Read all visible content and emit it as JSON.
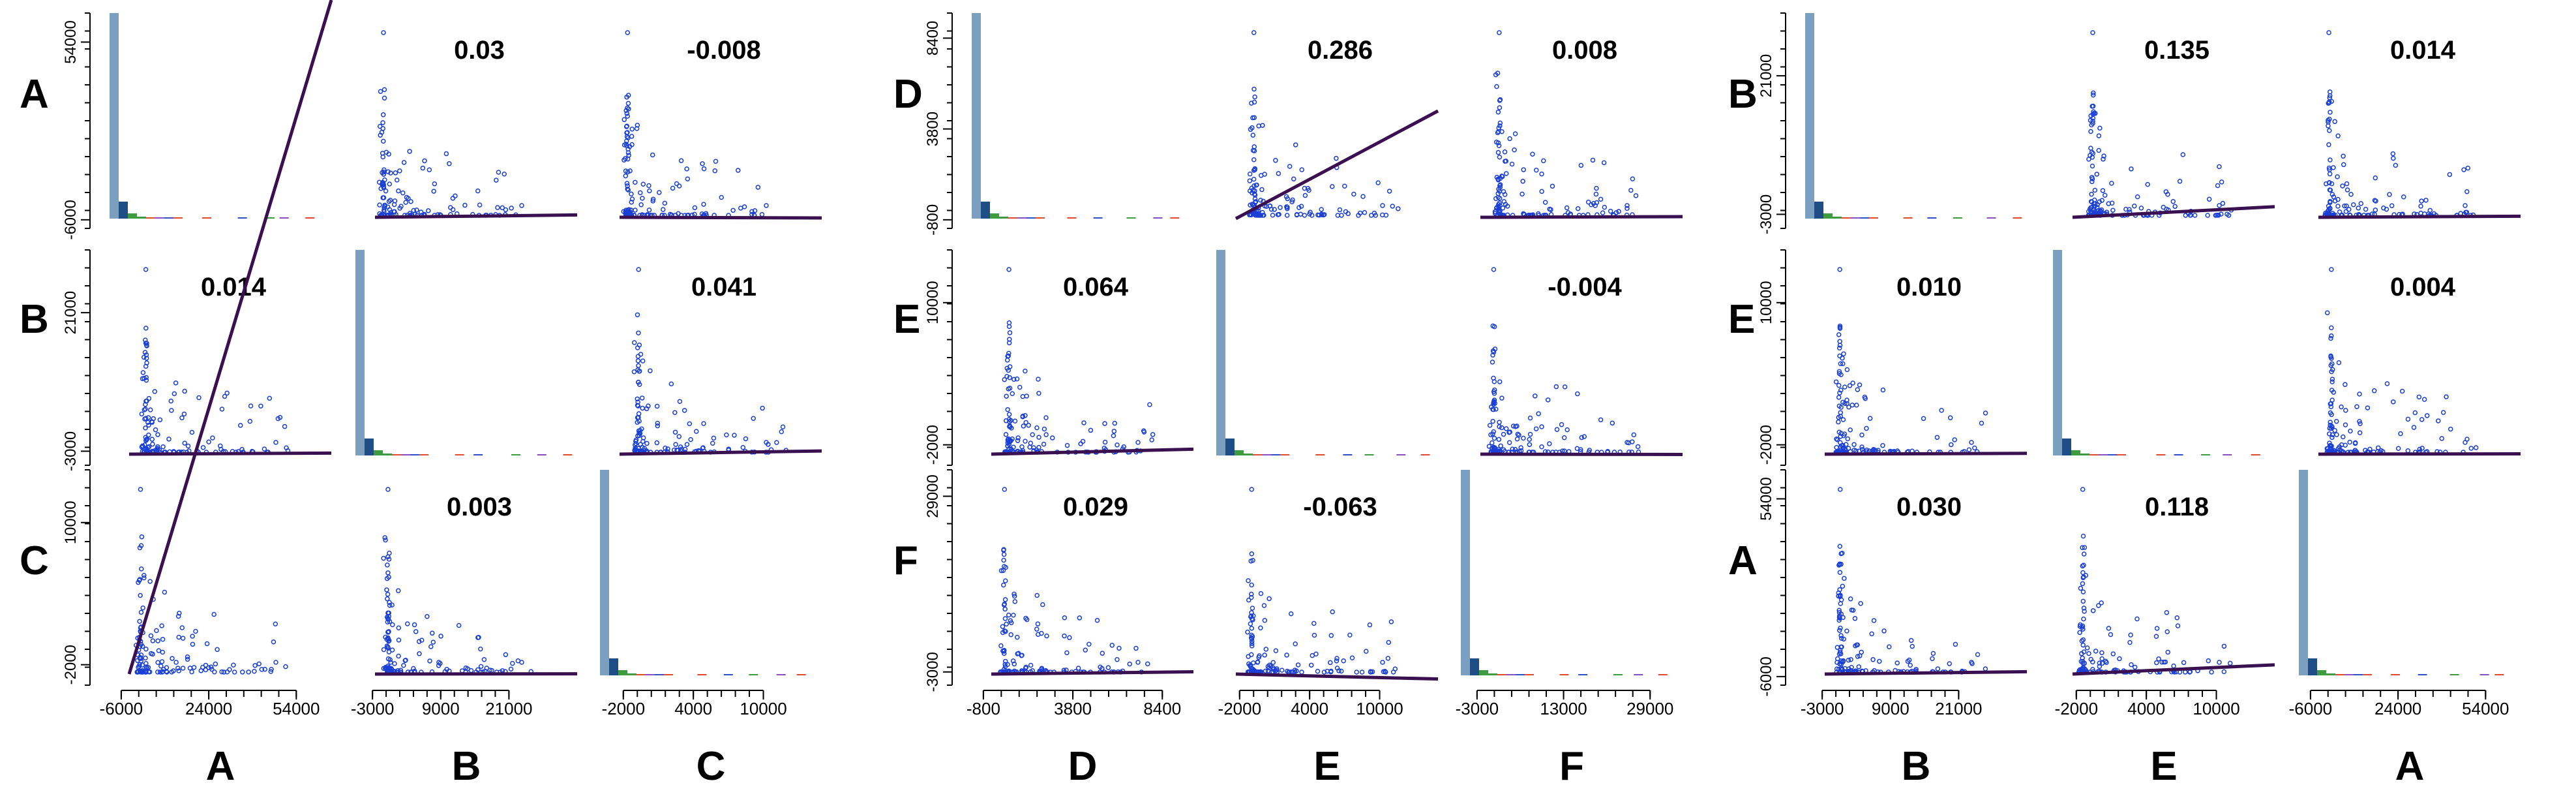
{
  "chart_data": [
    {
      "type": "scatter-matrix",
      "variables": [
        "A",
        "B",
        "C"
      ],
      "axis_labels": [
        "A",
        "B",
        "C"
      ],
      "ticks": {
        "A": [
          "-6000",
          "24000",
          "54000"
        ],
        "B": [
          "-3000",
          "9000",
          "21000"
        ],
        "C": [
          "-2000",
          "4000",
          "10000"
        ]
      },
      "ranges": {
        "A": [
          -10000,
          66000
        ],
        "B": [
          -6000,
          33000
        ],
        "C": [
          -4000,
          15000
        ]
      },
      "y_ticks": {
        "A": [
          "-6000",
          "54000"
        ],
        "B": [
          "-3000",
          "21000"
        ],
        "C": [
          "-2000",
          "10000"
        ]
      },
      "correlations": {
        "0-1": "0.03",
        "0-2": "-0.008",
        "1-0": "0.014",
        "1-2": "0.041",
        "2-1": "0.003"
      }
    },
    {
      "type": "scatter-matrix",
      "variables": [
        "D",
        "E",
        "F"
      ],
      "axis_labels": [
        "D",
        "E",
        "F"
      ],
      "ticks": {
        "D": [
          "-800",
          "3800",
          "8400"
        ],
        "E": [
          "-2000",
          "4000",
          "10000"
        ],
        "F": [
          "-3000",
          "13000",
          "29000"
        ]
      },
      "ranges": {
        "D": [
          -1400,
          10000
        ],
        "E": [
          -4000,
          15000
        ],
        "F": [
          -6000,
          35000
        ]
      },
      "y_ticks": {
        "D": [
          "-800",
          "3800",
          "8400"
        ],
        "E": [
          "-2000",
          "10000"
        ],
        "F": [
          "-3000",
          "29000"
        ]
      },
      "correlations": {
        "0-1": "0.286",
        "0-2": "0.008",
        "1-0": "0.064",
        "1-2": "-0.004",
        "2-0": "0.029",
        "2-1": "-0.063"
      }
    },
    {
      "type": "scatter-matrix",
      "variables": [
        "B",
        "E",
        "A"
      ],
      "axis_labels": [
        "B",
        "E",
        "A"
      ],
      "ticks": {
        "B": [
          "-3000",
          "9000",
          "21000"
        ],
        "E": [
          "-2000",
          "4000",
          "10000"
        ],
        "A": [
          "-6000",
          "24000",
          "54000"
        ]
      },
      "ranges": {
        "B": [
          -6000,
          33000
        ],
        "E": [
          -4000,
          15000
        ],
        "A": [
          -10000,
          66000
        ]
      },
      "y_ticks": {
        "B": [
          "-3000",
          "21000"
        ],
        "E": [
          "-2000",
          "10000"
        ],
        "A": [
          "-6000",
          "54000"
        ]
      },
      "correlations": {
        "0-1": "0.135",
        "0-2": "0.014",
        "1-0": "0.010",
        "1-2": "0.004",
        "2-0": "0.030",
        "2-1": "0.118"
      }
    }
  ],
  "colors": {
    "points": "#1a3fd6",
    "fit_line": "#3a1050",
    "hist_main": "#7a9fbf",
    "hist_dark": "#1f4e86",
    "hist_green": "#3f9b3f",
    "hist_red": "#e04a2f",
    "hist_purple": "#8a4fbf",
    "hist_blue": "#3050c8"
  }
}
